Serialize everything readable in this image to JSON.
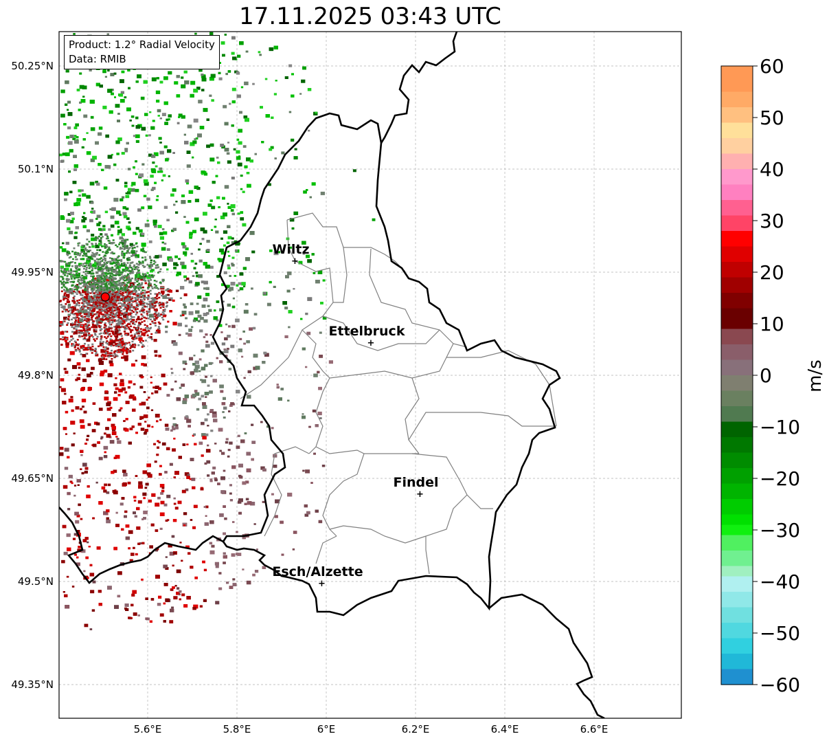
{
  "title": "17.11.2025 03:43 UTC",
  "info": {
    "product": "Product: 1.2° Radial Velocity",
    "data_source": "Data: RMIB"
  },
  "axes": {
    "lon_ticks": [
      "5.6°E",
      "5.8°E",
      "6°E",
      "6.2°E",
      "6.4°E",
      "6.6°E"
    ],
    "lat_ticks": [
      "50.25°N",
      "50.1°N",
      "49.95°N",
      "49.8°N",
      "49.65°N",
      "49.5°N",
      "49.35°N"
    ]
  },
  "cities": [
    {
      "name": "Wiltz",
      "lon": 5.93,
      "lat": 49.966
    },
    {
      "name": "Ettelbruck",
      "lon": 6.1,
      "lat": 49.847
    },
    {
      "name": "Findel",
      "lon": 6.21,
      "lat": 49.627
    },
    {
      "name": "Esch/Alzette",
      "lon": 5.99,
      "lat": 49.497
    }
  ],
  "radar_site": {
    "lon": 5.505,
    "lat": 49.914
  },
  "colorbar": {
    "label": "m/s",
    "min": -60,
    "max": 60,
    "ticks": [
      "60",
      "50",
      "40",
      "30",
      "20",
      "10",
      "0",
      "−10",
      "−20",
      "−30",
      "−40",
      "−50",
      "−60"
    ]
  },
  "colors": {
    "border": "#000000",
    "cantons": "#808080",
    "radar_site": "#ff0000",
    "grid": "#b0b0b0"
  }
}
